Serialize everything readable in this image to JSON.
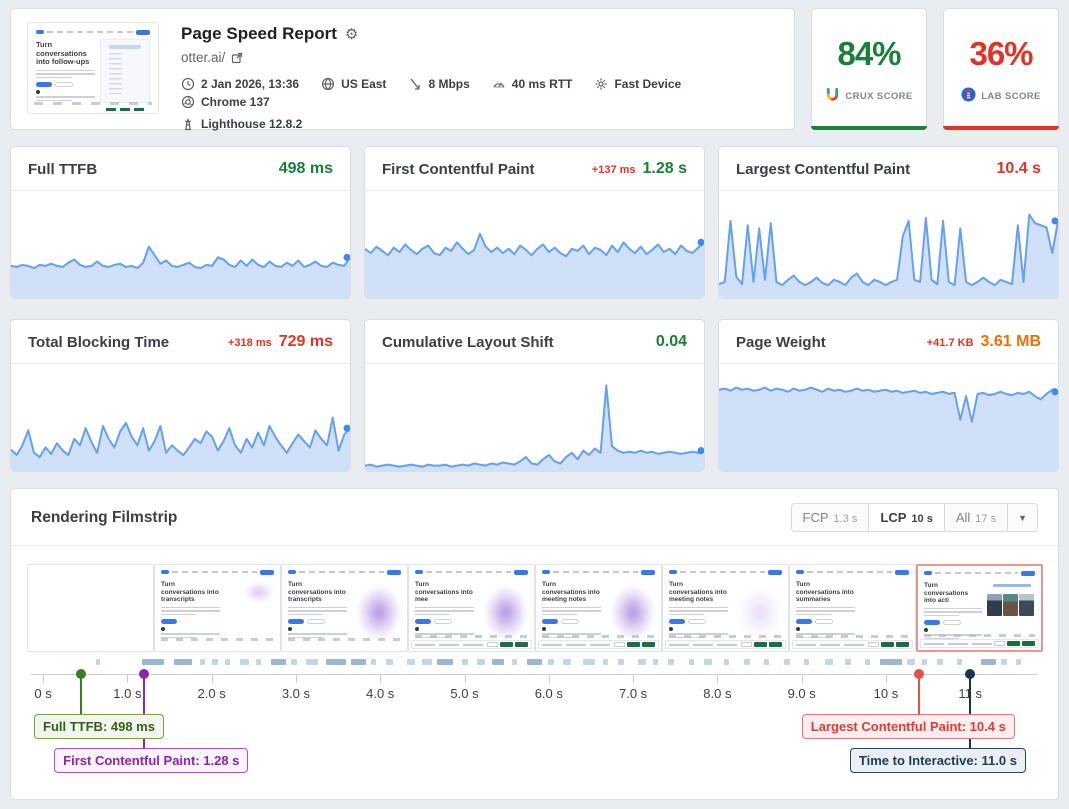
{
  "header": {
    "title": "Page Speed Report",
    "url": "otter.ai/",
    "thumbnail_heading": "Turn conversations into follow-ups",
    "meta": [
      {
        "icon": "clock-icon",
        "label": "2 Jan 2026, 13:36"
      },
      {
        "icon": "globe-icon",
        "label": "US East"
      },
      {
        "icon": "network-icon",
        "label": "8 Mbps"
      },
      {
        "icon": "gauge-icon",
        "label": "40 ms RTT"
      },
      {
        "icon": "device-icon",
        "label": "Fast Device"
      },
      {
        "icon": "chrome-icon",
        "label": "Chrome 137"
      },
      {
        "icon": "lighthouse-icon",
        "label": "Lighthouse 12.8.2"
      }
    ]
  },
  "scores": [
    {
      "value": "84%",
      "label": "CRUX SCORE",
      "color": "#188038"
    },
    {
      "value": "36%",
      "label": "LAB SCORE",
      "color": "#e23325"
    }
  ],
  "metrics": [
    {
      "title": "Full TTFB",
      "delta": "",
      "value": "498 ms",
      "value_color": "#188038",
      "delta_color": "#e23325",
      "points": [
        30,
        29,
        31,
        30,
        28,
        31,
        30,
        32,
        30,
        29,
        33,
        36,
        31,
        29,
        30,
        34,
        30,
        29,
        31,
        32,
        29,
        30,
        28,
        33,
        48,
        40,
        32,
        35,
        30,
        29,
        31,
        33,
        29,
        28,
        31,
        30,
        38,
        36,
        31,
        29,
        35,
        30,
        36,
        31,
        29,
        34,
        30,
        29,
        33,
        30,
        35,
        29,
        31,
        34,
        30,
        29,
        33,
        31,
        30,
        38
      ]
    },
    {
      "title": "First Contentful Paint",
      "delta": "+137 ms",
      "value": "1.28 s",
      "value_color": "#188038",
      "delta_color": "#e23325",
      "points": [
        46,
        42,
        48,
        44,
        40,
        47,
        43,
        50,
        45,
        41,
        46,
        49,
        42,
        40,
        47,
        44,
        52,
        46,
        41,
        45,
        60,
        48,
        43,
        47,
        42,
        46,
        41,
        49,
        45,
        40,
        46,
        50,
        43,
        47,
        42,
        39,
        46,
        44,
        49,
        41,
        47,
        45,
        40,
        49,
        43,
        52,
        46,
        42,
        48,
        41,
        45,
        50,
        43,
        46,
        41,
        49,
        44,
        42,
        47,
        52
      ]
    },
    {
      "title": "Largest Contentful Paint",
      "delta": "",
      "value": "10.4 s",
      "value_color": "#e23325",
      "delta_color": "#e23325",
      "points": [
        13,
        15,
        72,
        20,
        13,
        68,
        15,
        65,
        17,
        70,
        15,
        12,
        17,
        21,
        15,
        12,
        15,
        19,
        14,
        12,
        17,
        15,
        12,
        19,
        23,
        15,
        12,
        17,
        15,
        12,
        15,
        17,
        58,
        72,
        17,
        15,
        75,
        17,
        13,
        72,
        15,
        12,
        65,
        15,
        12,
        15,
        19,
        15,
        12,
        17,
        15,
        13,
        68,
        15,
        78,
        70,
        68,
        66,
        42,
        72
      ]
    },
    {
      "title": "Total Blocking Time",
      "delta": "+318 ms",
      "value": "729 ms",
      "value_color": "#e23325",
      "delta_color": "#e23325",
      "points": [
        20,
        15,
        24,
        38,
        17,
        13,
        22,
        16,
        26,
        19,
        15,
        30,
        24,
        40,
        27,
        17,
        42,
        30,
        22,
        37,
        45,
        32,
        24,
        40,
        19,
        28,
        42,
        17,
        24,
        19,
        15,
        22,
        30,
        26,
        37,
        32,
        19,
        28,
        40,
        24,
        17,
        30,
        22,
        36,
        24,
        42,
        32,
        24,
        17,
        26,
        34,
        28,
        22,
        38,
        30,
        24,
        50,
        19,
        34,
        40
      ]
    },
    {
      "title": "Cumulative Layout Shift",
      "delta": "",
      "value": "0.04",
      "value_color": "#188038",
      "delta_color": "#e23325",
      "points": [
        5,
        6,
        4,
        5,
        6,
        5,
        4,
        5,
        6,
        5,
        4,
        6,
        5,
        5,
        6,
        4,
        5,
        6,
        5,
        7,
        6,
        5,
        7,
        6,
        8,
        7,
        6,
        9,
        13,
        7,
        6,
        11,
        15,
        9,
        7,
        13,
        17,
        11,
        19,
        15,
        21,
        17,
        80,
        23,
        19,
        17,
        18,
        17,
        19,
        17,
        18,
        16,
        17,
        18,
        17,
        16,
        17,
        18,
        17,
        19
      ]
    },
    {
      "title": "Page Weight",
      "delta": "+41.7 KB",
      "value": "3.61 MB",
      "value_color": "#e8710a",
      "delta_color": "#e23325",
      "points": [
        76,
        77,
        75,
        78,
        76,
        77,
        75,
        76,
        78,
        75,
        77,
        76,
        74,
        77,
        75,
        76,
        78,
        76,
        74,
        77,
        75,
        76,
        74,
        75,
        77,
        75,
        76,
        74,
        75,
        76,
        74,
        75,
        73,
        74,
        75,
        73,
        74,
        72,
        73,
        74,
        72,
        73,
        48,
        70,
        46,
        72,
        73,
        71,
        72,
        74,
        72,
        71,
        73,
        72,
        74,
        70,
        67,
        72,
        76,
        74
      ]
    }
  ],
  "sparkline": {
    "line_color": "#66a1ec",
    "fill_color": "#cfe0f8",
    "dot_color": "#3d8af0"
  },
  "filmstrip": {
    "title": "Rendering Filmstrip",
    "buttons": [
      {
        "label": "FCP",
        "value": "1.3 s",
        "active": false
      },
      {
        "label": "LCP",
        "value": "10 s",
        "active": true
      },
      {
        "label": "All",
        "value": "17 s",
        "active": false
      }
    ],
    "caret": "▼",
    "frames": [
      {
        "heading": ""
      },
      {
        "heading": "Turn conversations into transcripts"
      },
      {
        "heading": "Turn conversations into transcripts"
      },
      {
        "heading": "Turn conversations into mee"
      },
      {
        "heading": "Turn conversations into meeting notes"
      },
      {
        "heading": "Turn conversations into meeting notes"
      },
      {
        "heading": "Turn conversations into summaries"
      },
      {
        "heading": "Turn conversations into acti"
      }
    ],
    "axis": [
      {
        "label": "0 s",
        "pos": "1.2%"
      },
      {
        "label": "1.0 s",
        "pos": "9.57%"
      },
      {
        "label": "2.0 s",
        "pos": "17.94%"
      },
      {
        "label": "3.0 s",
        "pos": "26.31%"
      },
      {
        "label": "4.0 s",
        "pos": "34.68%"
      },
      {
        "label": "5.0 s",
        "pos": "43.05%"
      },
      {
        "label": "6.0 s",
        "pos": "51.42%"
      },
      {
        "label": "7.0 s",
        "pos": "59.79%"
      },
      {
        "label": "8.0 s",
        "pos": "68.16%"
      },
      {
        "label": "9.0 s",
        "pos": "76.53%"
      },
      {
        "label": "10 s",
        "pos": "84.9%"
      },
      {
        "label": "11 s",
        "pos": "93.27%"
      }
    ],
    "markers": [
      {
        "label": "Full TTFB: 498 ms",
        "time": "0.5 s",
        "pos": "5.0%",
        "box_left": "0.3%"
      },
      {
        "label": "First Contentful Paint: 1.28 s",
        "time": "1.28 s",
        "pos": "11.2%",
        "box_left": "2.3%"
      },
      {
        "label": "Largest Contentful Paint: 10.4 s",
        "time": "10.4 s",
        "pos": "88.2%",
        "box_right": "2.3%"
      },
      {
        "label": "Time to Interactive: 11.0 s",
        "time": "11.0 s",
        "pos": "93.27%",
        "box_right": "1.2%"
      }
    ],
    "activity": [
      [
        6.5,
        0.4,
        0
      ],
      [
        11,
        2.2,
        1
      ],
      [
        14.2,
        1.8,
        1
      ],
      [
        16.8,
        0.5,
        0
      ],
      [
        18,
        0.6,
        0
      ],
      [
        19.3,
        0.5,
        0
      ],
      [
        20.8,
        0.8,
        0
      ],
      [
        22.3,
        0.5,
        0
      ],
      [
        23.8,
        1.5,
        1
      ],
      [
        25.8,
        0.6,
        0
      ],
      [
        27.3,
        1.2,
        0
      ],
      [
        29.3,
        2.0,
        1
      ],
      [
        31.8,
        1.5,
        1
      ],
      [
        33.8,
        0.5,
        0
      ],
      [
        35.3,
        0.6,
        0
      ],
      [
        37.3,
        0.8,
        0
      ],
      [
        38.8,
        1.0,
        0
      ],
      [
        40.3,
        1.6,
        1
      ],
      [
        42.8,
        0.6,
        0
      ],
      [
        44.3,
        0.8,
        0
      ],
      [
        45.8,
        1.2,
        1
      ],
      [
        47.8,
        0.5,
        0
      ],
      [
        49.3,
        1.4,
        1
      ],
      [
        51.3,
        0.6,
        0
      ],
      [
        52.8,
        0.8,
        0
      ],
      [
        54.8,
        1.2,
        0
      ],
      [
        56.8,
        0.5,
        0
      ],
      [
        58.3,
        0.6,
        0
      ],
      [
        60.3,
        0.8,
        0
      ],
      [
        61.8,
        0.5,
        0
      ],
      [
        63.3,
        0.6,
        0
      ],
      [
        65.3,
        0.5,
        0
      ],
      [
        66.8,
        0.8,
        0
      ],
      [
        68.8,
        0.5,
        0
      ],
      [
        70.8,
        0.6,
        0
      ],
      [
        72.8,
        0.5,
        0
      ],
      [
        74.8,
        0.6,
        0
      ],
      [
        76.8,
        0.5,
        0
      ],
      [
        78.8,
        0.8,
        0
      ],
      [
        80.8,
        0.6,
        0
      ],
      [
        82.8,
        0.5,
        0
      ],
      [
        84.3,
        2.2,
        1
      ],
      [
        87,
        0.8,
        0
      ],
      [
        88.5,
        0.5,
        0
      ],
      [
        90,
        0.6,
        0
      ],
      [
        92,
        0.5,
        0
      ],
      [
        94.3,
        1.5,
        1
      ],
      [
        96.3,
        0.6,
        0
      ],
      [
        97.8,
        0.5,
        0
      ]
    ]
  }
}
